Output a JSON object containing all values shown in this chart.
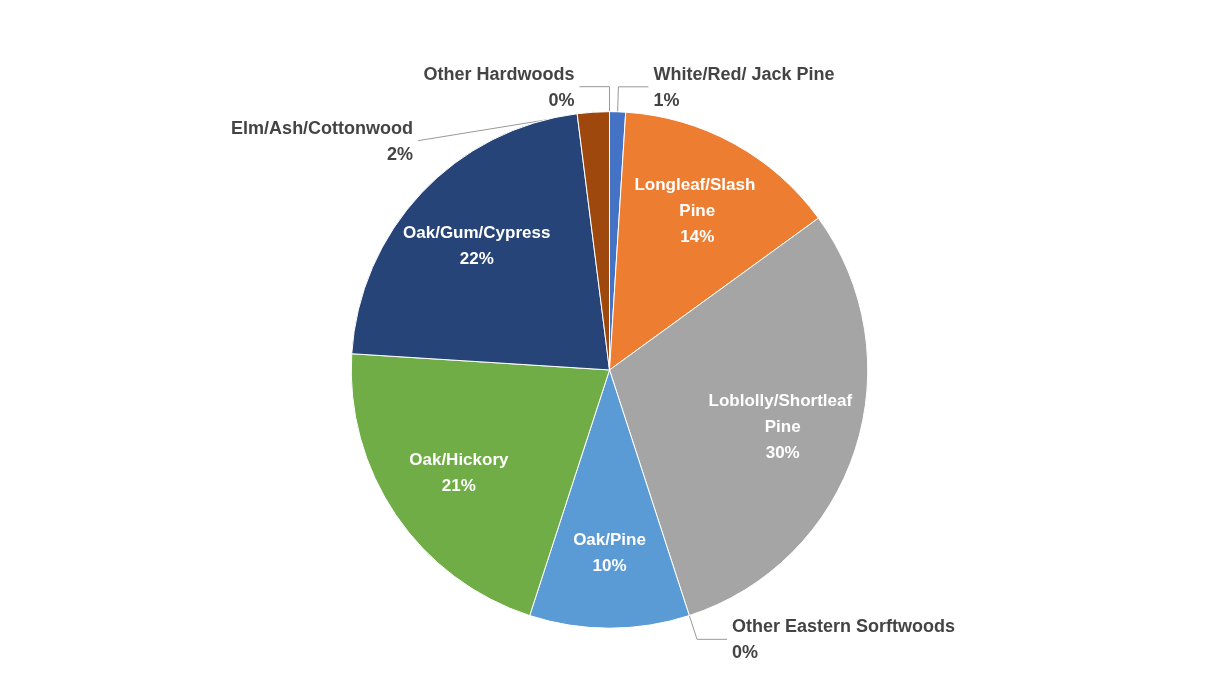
{
  "chart_data": {
    "type": "pie",
    "categories": [
      "White/Red/ Jack Pine",
      "Longleaf/Slash Pine",
      "Loblolly/Shortleaf Pine",
      "Other Eastern Sorftwoods",
      "Oak/Pine",
      "Oak/Hickory",
      "Oak/Gum/Cypress",
      "Elm/Ash/Cottonwood",
      "Other Hardwoods"
    ],
    "values": [
      1,
      14,
      30,
      0,
      10,
      21,
      22,
      2,
      0
    ],
    "value_labels": [
      "1%",
      "14%",
      "30%",
      "0%",
      "10%",
      "21%",
      "22%",
      "2%",
      "0%"
    ],
    "colors": [
      "#4472c4",
      "#ed7d31",
      "#a5a5a5",
      "#ffc000",
      "#5b9bd5",
      "#70ad47",
      "#264478",
      "#9e480e",
      "#636363"
    ]
  }
}
